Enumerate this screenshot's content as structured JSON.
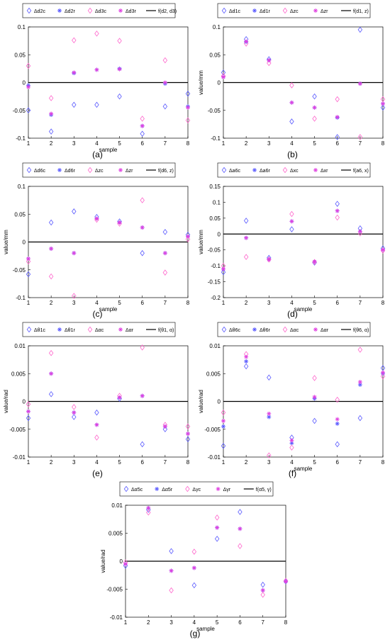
{
  "figure_colors": {
    "blue": "#5a5aff",
    "magenta": "#e040e0",
    "pink": "#ff66cc",
    "axis": "#000000"
  },
  "chart_data": [
    {
      "id": "a",
      "caption": "(a)",
      "type": "scatter",
      "xlabel": "sample",
      "ylabel": "",
      "xlim": [
        1,
        8
      ],
      "ylim": [
        -0.1,
        0.1
      ],
      "yticks": [
        "-0.1",
        "-0.05",
        "0",
        "0.05",
        "0.1"
      ],
      "x": [
        1,
        2,
        3,
        4,
        5,
        6,
        7,
        8
      ],
      "legend": [
        "Δd2c",
        "Δd2r",
        "Δd3c",
        "Δd3r",
        "f(d2, d3)"
      ],
      "series": [
        {
          "name": "Δd2c",
          "marker": "diamond",
          "color": "blue",
          "values": [
            -0.05,
            -0.088,
            -0.04,
            -0.04,
            -0.025,
            -0.092,
            -0.043,
            -0.02
          ]
        },
        {
          "name": "Δd2r",
          "marker": "asterisk",
          "color": "blue",
          "values": [
            -0.005,
            -0.058,
            0.017,
            0.023,
            0.025,
            -0.078,
            -0.002,
            -0.043
          ]
        },
        {
          "name": "Δd3c",
          "marker": "diamond",
          "color": "pink",
          "values": [
            0.03,
            -0.028,
            0.076,
            0.088,
            0.075,
            -0.065,
            0.04,
            -0.068
          ]
        },
        {
          "name": "Δd3r",
          "marker": "asterisk",
          "color": "magenta",
          "values": [
            -0.008,
            -0.056,
            0.018,
            0.023,
            0.024,
            -0.078,
            0.0,
            -0.045
          ]
        }
      ],
      "line": {
        "name": "f(d2, d3)",
        "values": [
          0,
          0,
          0,
          0,
          0,
          0,
          0,
          0
        ]
      }
    },
    {
      "id": "b",
      "caption": "(b)",
      "type": "scatter",
      "xlabel": "",
      "ylabel": "value/mm",
      "xlim": [
        1,
        8
      ],
      "ylim": [
        -0.1,
        0.1
      ],
      "yticks": [
        "-0.1",
        "-0.05",
        "0",
        "0.05",
        "0.1"
      ],
      "x": [
        1,
        2,
        3,
        4,
        5,
        6,
        7,
        8
      ],
      "legend": [
        "Δd1c",
        "Δd1r",
        "Δzc",
        "Δzr",
        "f(d1, z)"
      ],
      "series": [
        {
          "name": "Δd1c",
          "marker": "diamond",
          "color": "blue",
          "values": [
            0.018,
            0.078,
            0.042,
            -0.07,
            -0.025,
            -0.098,
            0.095,
            -0.045
          ]
        },
        {
          "name": "Δd1r",
          "marker": "asterisk",
          "color": "blue",
          "values": [
            0.01,
            0.073,
            0.04,
            -0.036,
            -0.045,
            -0.063,
            -0.002,
            -0.038
          ]
        },
        {
          "name": "Δzc",
          "marker": "diamond",
          "color": "pink",
          "values": [
            0.012,
            0.07,
            0.035,
            -0.005,
            -0.065,
            -0.03,
            -0.098,
            -0.03
          ]
        },
        {
          "name": "Δzr",
          "marker": "asterisk",
          "color": "magenta",
          "values": [
            0.01,
            0.074,
            0.04,
            -0.036,
            -0.045,
            -0.062,
            -0.002,
            -0.038
          ]
        }
      ],
      "line": {
        "name": "f(d1, z)",
        "values": [
          0,
          0,
          0,
          0,
          0,
          0,
          0,
          0
        ]
      }
    },
    {
      "id": "c",
      "caption": "(c)",
      "type": "scatter",
      "xlabel": "sample",
      "ylabel": "value/mm",
      "xlim": [
        1,
        8
      ],
      "ylim": [
        -0.1,
        0.1
      ],
      "yticks": [
        "-0.1",
        "-0.05",
        "0",
        "0.05",
        "0.1"
      ],
      "x": [
        1,
        2,
        3,
        4,
        5,
        6,
        7,
        8
      ],
      "legend": [
        "Δd6c",
        "Δd6r",
        "Δzc",
        "Δzr",
        "f(d6, z)"
      ],
      "series": [
        {
          "name": "Δd6c",
          "marker": "diamond",
          "color": "blue",
          "values": [
            -0.058,
            0.035,
            0.055,
            0.045,
            0.037,
            -0.02,
            0.018,
            0.013
          ]
        },
        {
          "name": "Δd6r",
          "marker": "asterisk",
          "color": "blue",
          "values": [
            -0.03,
            -0.012,
            -0.02,
            0.042,
            0.035,
            0.026,
            -0.02,
            0.01
          ]
        },
        {
          "name": "Δzc",
          "marker": "diamond",
          "color": "pink",
          "values": [
            -0.035,
            -0.062,
            -0.097,
            0.04,
            0.033,
            0.075,
            -0.055,
            0.005
          ]
        },
        {
          "name": "Δzr",
          "marker": "asterisk",
          "color": "magenta",
          "values": [
            -0.03,
            -0.012,
            -0.02,
            0.042,
            0.035,
            0.026,
            -0.02,
            0.01
          ]
        }
      ],
      "line": {
        "name": "f(d6, z)",
        "values": [
          0,
          0,
          0,
          0,
          0,
          0,
          0,
          0
        ]
      }
    },
    {
      "id": "d",
      "caption": "(d)",
      "type": "scatter",
      "xlabel": "sample",
      "ylabel": "value/mm",
      "xlim": [
        1,
        8
      ],
      "ylim": [
        -0.2,
        0.15
      ],
      "yticks": [
        "-0.2",
        "-0.15",
        "-0.1",
        "-0.05",
        "0",
        "0.05",
        "0.1",
        "0.15"
      ],
      "x": [
        1,
        2,
        3,
        4,
        5,
        6,
        7,
        8
      ],
      "legend": [
        "Δa6c",
        "Δa6r",
        "Δxc",
        "Δxr",
        "f(a6, x)"
      ],
      "series": [
        {
          "name": "Δa6c",
          "marker": "diamond",
          "color": "blue",
          "values": [
            -0.12,
            0.042,
            -0.075,
            0.015,
            -0.09,
            0.095,
            0.018,
            -0.045
          ]
        },
        {
          "name": "Δa6r",
          "marker": "asterisk",
          "color": "blue",
          "values": [
            -0.11,
            -0.012,
            -0.08,
            0.04,
            -0.087,
            0.073,
            0.008,
            -0.05
          ]
        },
        {
          "name": "Δxc",
          "marker": "diamond",
          "color": "pink",
          "values": [
            -0.1,
            -0.072,
            -0.08,
            0.063,
            -0.088,
            0.052,
            0.002,
            -0.052
          ]
        },
        {
          "name": "Δxr",
          "marker": "asterisk",
          "color": "magenta",
          "values": [
            -0.11,
            -0.012,
            -0.08,
            0.04,
            -0.087,
            0.073,
            0.008,
            -0.05
          ]
        }
      ],
      "line": {
        "name": "f(a6, x)",
        "values": [
          0,
          0,
          0,
          0,
          0,
          0,
          0,
          0
        ]
      }
    },
    {
      "id": "e",
      "caption": "(e)",
      "type": "scatter",
      "xlabel": "",
      "ylabel": "value/rad",
      "xlim": [
        1,
        8
      ],
      "ylim": [
        -0.01,
        0.01
      ],
      "yticks": [
        "-0.01",
        "-0.005",
        "0",
        "0.005",
        "0.01"
      ],
      "x": [
        1,
        2,
        3,
        4,
        5,
        6,
        7,
        8
      ],
      "legend": [
        "Δθ1c",
        "Δθ1r",
        "Δαc",
        "Δαr",
        "f(θ1, α)"
      ],
      "series": [
        {
          "name": "Δθ1c",
          "marker": "diamond",
          "color": "blue",
          "values": [
            -0.003,
            0.0013,
            -0.0028,
            -0.002,
            0.0005,
            -0.0077,
            -0.005,
            -0.0068
          ]
        },
        {
          "name": "Δθ1r",
          "marker": "asterisk",
          "color": "blue",
          "values": [
            -0.0018,
            0.005,
            -0.002,
            -0.0042,
            0.0007,
            0.001,
            -0.0045,
            -0.0058
          ]
        },
        {
          "name": "Δαc",
          "marker": "diamond",
          "color": "pink",
          "values": [
            -0.0005,
            0.0087,
            -0.001,
            -0.0065,
            0.001,
            0.0097,
            -0.0042,
            -0.0045
          ]
        },
        {
          "name": "Δαr",
          "marker": "asterisk",
          "color": "magenta",
          "values": [
            -0.0018,
            0.005,
            -0.002,
            -0.0042,
            0.0007,
            0.001,
            -0.0045,
            -0.0058
          ]
        }
      ],
      "line": {
        "name": "f(θ1, α)",
        "values": [
          0,
          0,
          0,
          0,
          0,
          0,
          0,
          0
        ]
      }
    },
    {
      "id": "f",
      "caption": "(f)",
      "type": "scatter",
      "xlabel": "sample",
      "ylabel": "value/rad",
      "xlim": [
        1,
        8
      ],
      "ylim": [
        -0.01,
        0.01
      ],
      "yticks": [
        "-0.01",
        "-0.005",
        "0",
        "0.005",
        "0.01"
      ],
      "x": [
        1,
        2,
        3,
        4,
        5,
        6,
        7,
        8
      ],
      "legend": [
        "Δθ6c",
        "Δθ6r",
        "Δαc",
        "Δαr",
        "f(θ6, α)"
      ],
      "series": [
        {
          "name": "Δθ6c",
          "marker": "diamond",
          "color": "blue",
          "values": [
            -0.008,
            0.0063,
            0.0043,
            -0.0065,
            -0.0035,
            -0.0077,
            -0.003,
            0.006
          ]
        },
        {
          "name": "Δθ6r",
          "marker": "asterisk",
          "color": "blue",
          "values": [
            -0.0045,
            0.0072,
            -0.0028,
            -0.0075,
            0.0005,
            -0.004,
            0.003,
            0.005
          ]
        },
        {
          "name": "Δαc",
          "marker": "diamond",
          "color": "pink",
          "values": [
            -0.002,
            0.0085,
            -0.0097,
            -0.0083,
            0.0042,
            0.0003,
            0.0093,
            0.0045
          ]
        },
        {
          "name": "Δαr",
          "marker": "asterisk",
          "color": "magenta",
          "values": [
            -0.0035,
            0.008,
            -0.0022,
            -0.007,
            0.0008,
            -0.0032,
            0.0035,
            0.0052
          ]
        }
      ],
      "line": {
        "name": "f(θ6, α)",
        "values": [
          0,
          0,
          0,
          0,
          0,
          0,
          0,
          0
        ]
      }
    },
    {
      "id": "g",
      "caption": "(g)",
      "type": "scatter",
      "xlabel": "sample",
      "ylabel": "value/rad",
      "xlim": [
        1,
        8
      ],
      "ylim": [
        -0.01,
        0.01
      ],
      "yticks": [
        "-0.01",
        "-0.005",
        "0",
        "0.005",
        "0.01"
      ],
      "x": [
        1,
        2,
        3,
        4,
        5,
        6,
        7,
        8
      ],
      "legend": [
        "Δα5c",
        "Δα5r",
        "Δγc",
        "Δγr",
        "f(α5, γ)"
      ],
      "series": [
        {
          "name": "Δα5c",
          "marker": "diamond",
          "color": "blue",
          "values": [
            -0.0008,
            0.0092,
            0.0018,
            -0.0043,
            0.004,
            0.0088,
            -0.0042,
            -0.0036
          ]
        },
        {
          "name": "Δα5r",
          "marker": "asterisk",
          "color": "blue",
          "values": [
            -0.0005,
            0.0095,
            -0.0017,
            -0.0012,
            0.006,
            0.0058,
            -0.0052,
            -0.0036
          ]
        },
        {
          "name": "Δγc",
          "marker": "diamond",
          "color": "pink",
          "values": [
            -0.0002,
            0.0087,
            -0.0052,
            0.0017,
            0.0078,
            0.0027,
            -0.006,
            -0.0035
          ]
        },
        {
          "name": "Δγr",
          "marker": "asterisk",
          "color": "magenta",
          "values": [
            -0.0005,
            0.0095,
            -0.0017,
            -0.0012,
            0.006,
            0.0058,
            -0.0052,
            -0.0036
          ]
        }
      ],
      "line": {
        "name": "f(α5, γ)",
        "values": [
          0,
          0,
          0,
          0,
          0,
          0,
          0,
          0
        ]
      }
    }
  ]
}
